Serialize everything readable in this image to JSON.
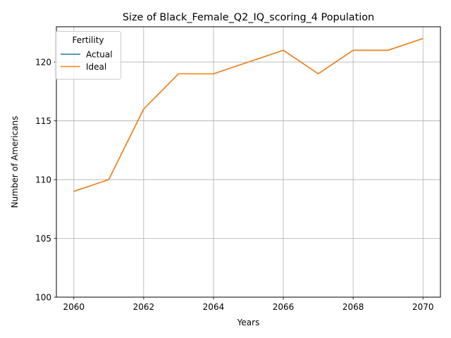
{
  "chart_data": {
    "type": "line",
    "title": "Size of Black_Female_Q2_IQ_scoring_4 Population",
    "xlabel": "Years",
    "ylabel": "Number of Americans",
    "xlim": [
      2059.5,
      2070.5
    ],
    "ylim": [
      100,
      123
    ],
    "x_ticks": [
      "2060",
      "2062",
      "2064",
      "2066",
      "2068",
      "2070"
    ],
    "y_ticks": [
      "100",
      "105",
      "110",
      "115",
      "120"
    ],
    "grid": true,
    "legend": {
      "title": "Fertility",
      "placement": "top-left"
    },
    "x": [
      2060,
      2061,
      2062,
      2063,
      2064,
      2065,
      2066,
      2067,
      2068,
      2069,
      2070
    ],
    "series": [
      {
        "name": "Actual",
        "color": "#1f77b4",
        "values": [
          109,
          110,
          116,
          119,
          119,
          120,
          121,
          119,
          121,
          121,
          122
        ]
      },
      {
        "name": "Ideal",
        "color": "#ff7f0e",
        "values": [
          109,
          110,
          116,
          119,
          119,
          120,
          121,
          119,
          121,
          121,
          122
        ]
      }
    ]
  }
}
